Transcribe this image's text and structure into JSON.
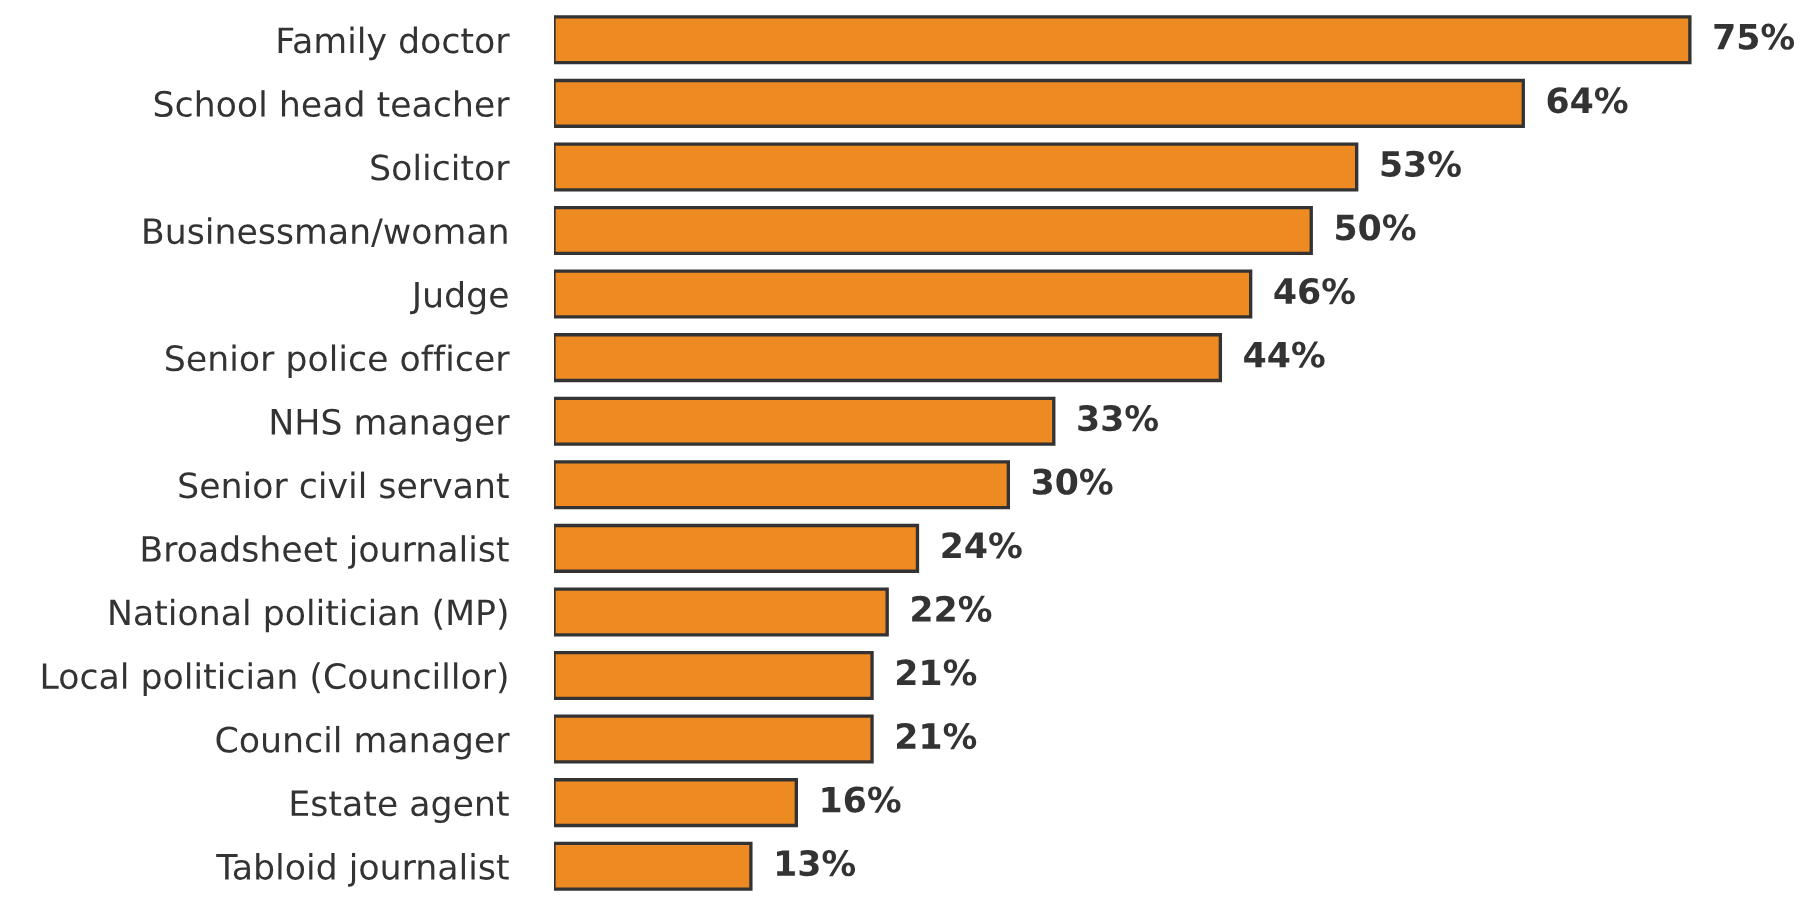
{
  "chart_data": {
    "type": "bar",
    "orientation": "horizontal",
    "tick_labels": "y",
    "categories": [
      "Family doctor",
      "School head teacher",
      "Solicitor",
      "Businessman/woman",
      "Judge",
      "Senior police officer",
      "NHS manager",
      "Senior civil servant",
      "Broadsheet journalist",
      "National politician (MP)",
      "Local politician (Councillor)",
      "Council manager",
      "Estate agent",
      "Tabloid journalist"
    ],
    "values": [
      75,
      64,
      53,
      50,
      46,
      44,
      33,
      30,
      24,
      22,
      21,
      21,
      16,
      13
    ],
    "color": "#ee8a22",
    "value_labels": [
      "75%",
      "64%",
      "53%",
      "50%",
      "46%",
      "44%",
      "33%",
      "30%",
      "24%",
      "22%",
      "21%",
      "21%",
      "16%",
      "13%"
    ]
  }
}
